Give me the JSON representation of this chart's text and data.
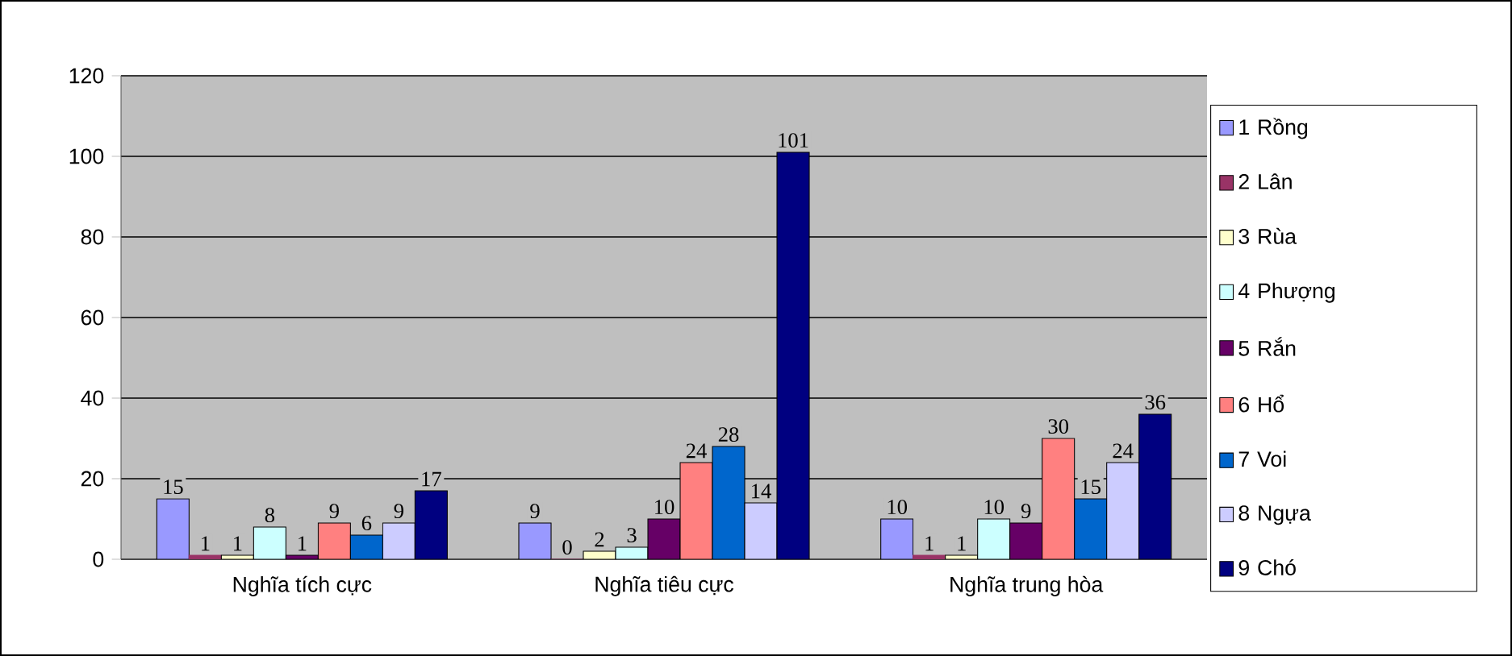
{
  "chart_data": {
    "type": "bar",
    "categories": [
      "Nghĩa tích cực",
      "Nghĩa tiêu cực",
      "Nghĩa trung hòa"
    ],
    "series": [
      {
        "name": "1 Rồng",
        "color": "#9999ff",
        "values": [
          15,
          9,
          10
        ]
      },
      {
        "name": "2 Lân",
        "color": "#993366",
        "values": [
          1,
          0,
          1
        ]
      },
      {
        "name": "3 Rùa",
        "color": "#ffffcc",
        "values": [
          1,
          2,
          1
        ]
      },
      {
        "name": "4 Phượng",
        "color": "#ccffff",
        "values": [
          8,
          3,
          10
        ]
      },
      {
        "name": "5 Rắn",
        "color": "#660066",
        "values": [
          1,
          10,
          9
        ]
      },
      {
        "name": "6 Hổ",
        "color": "#ff8080",
        "values": [
          9,
          24,
          30
        ]
      },
      {
        "name": "7 Voi",
        "color": "#0066cc",
        "values": [
          6,
          28,
          15
        ]
      },
      {
        "name": "8 Ngựa",
        "color": "#ccccff",
        "values": [
          9,
          14,
          24
        ]
      },
      {
        "name": "9 Chó",
        "color": "#000080",
        "values": [
          17,
          101,
          36
        ]
      }
    ],
    "ylim": [
      0,
      120
    ],
    "yticks": [
      0,
      20,
      40,
      60,
      80,
      100,
      120
    ],
    "grid": "y",
    "legend": "right",
    "data_labels": true
  }
}
